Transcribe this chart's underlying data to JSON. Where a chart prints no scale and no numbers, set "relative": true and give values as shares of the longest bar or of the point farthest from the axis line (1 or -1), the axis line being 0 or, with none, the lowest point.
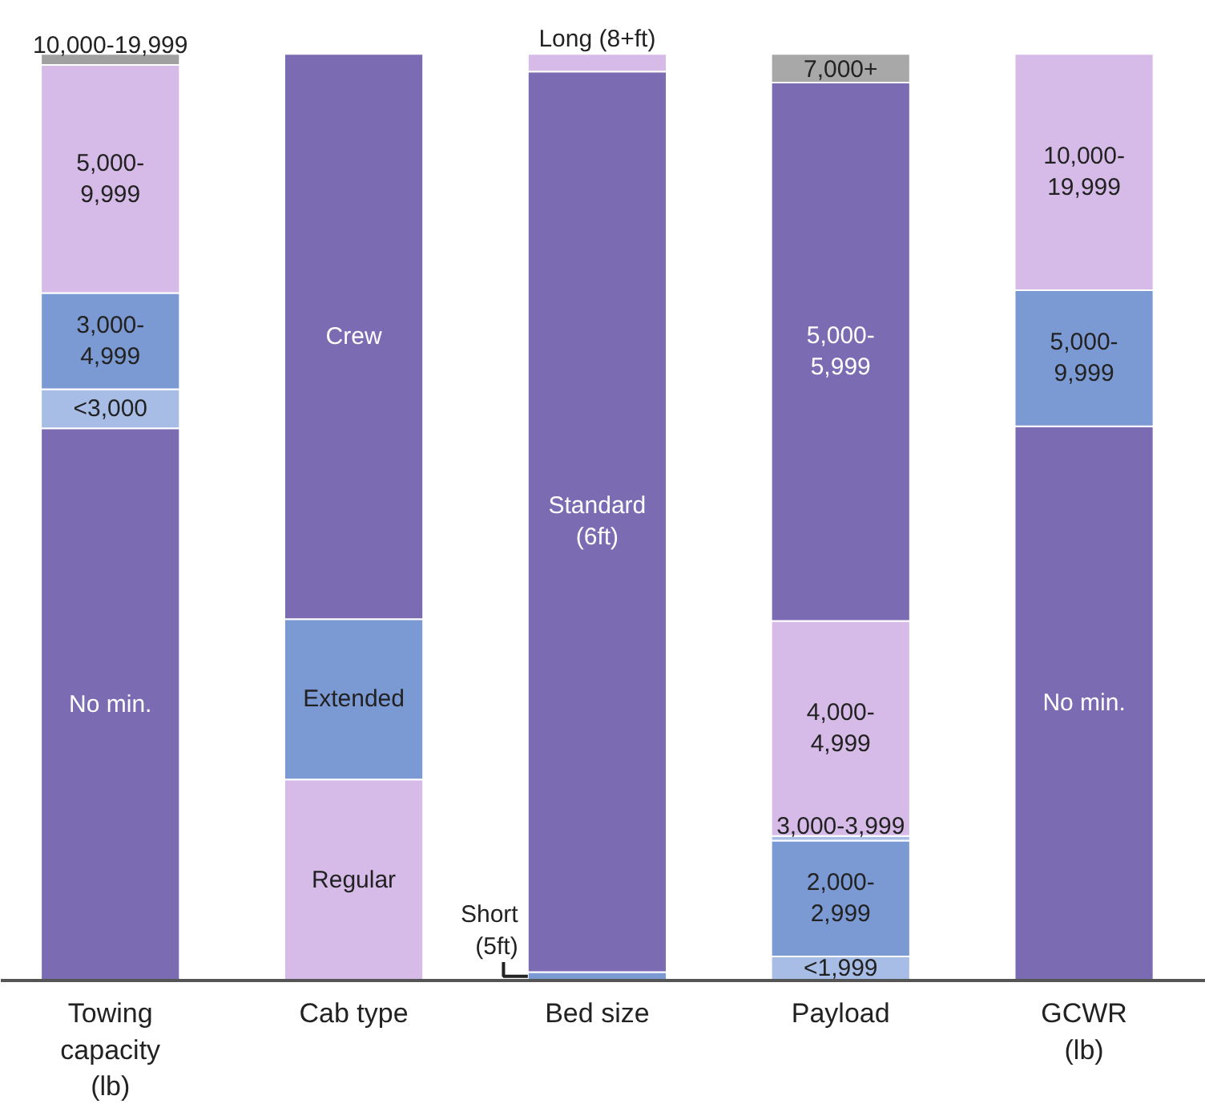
{
  "chart_data": {
    "type": "bar",
    "stacked": true,
    "relative": true,
    "categories": [
      "Towing\ncapacity\n(lb)",
      "Cab type",
      "Bed size",
      "Payload",
      "GCWR\n(lb)"
    ],
    "series": [
      {
        "values": [
          0.596,
          0.217,
          0.009,
          0.026,
          0.598
        ],
        "colors": [
          "#7b6bb3",
          "#d6bbe8",
          "#7b9ad4",
          "#a7bde6",
          "#7b6bb3"
        ]
      },
      {
        "values": [
          0.042,
          0.173,
          0.972,
          0.125,
          0.147
        ],
        "colors": [
          "#a7bde6",
          "#7b9ad4",
          "#7b6bb3",
          "#7b9ad4",
          "#7b9ad4"
        ]
      },
      {
        "values": [
          0.104,
          0.61,
          0.019,
          0.005,
          0.255
        ],
        "colors": [
          "#7b9ad4",
          "#7b6bb3",
          "#d6bbe8",
          "#a7bde6",
          "#d6bbe8"
        ]
      },
      {
        "values": [
          0.246,
          null,
          null,
          0.232,
          null
        ],
        "colors": [
          "#d6bbe8",
          null,
          null,
          "#d6bbe8",
          null
        ]
      },
      {
        "values": [
          0.012,
          null,
          null,
          0.581,
          null
        ],
        "colors": [
          "#a0a0a0",
          null,
          null,
          "#7b6bb3",
          null
        ]
      },
      {
        "values": [
          null,
          null,
          null,
          0.031,
          null
        ],
        "colors": [
          null,
          null,
          null,
          "#a8a8a8",
          null
        ]
      }
    ],
    "annotations": [
      "No min.",
      "<3,000",
      "3,000-\n4,999",
      "5,000-\n9,999",
      "10,000-19,999",
      "Regular",
      "Extended",
      "Crew",
      "Short\n(5ft)",
      "Standard\n(6ft)",
      "Long (8+ft)",
      "<1,999",
      "2,000-\n2,999",
      "3,000-3,999",
      "4,000-\n4,999",
      "5,000-\n5,999",
      "7,000+",
      "No min.",
      "5,000-\n9,999",
      "10,000-\n19,999"
    ]
  }
}
